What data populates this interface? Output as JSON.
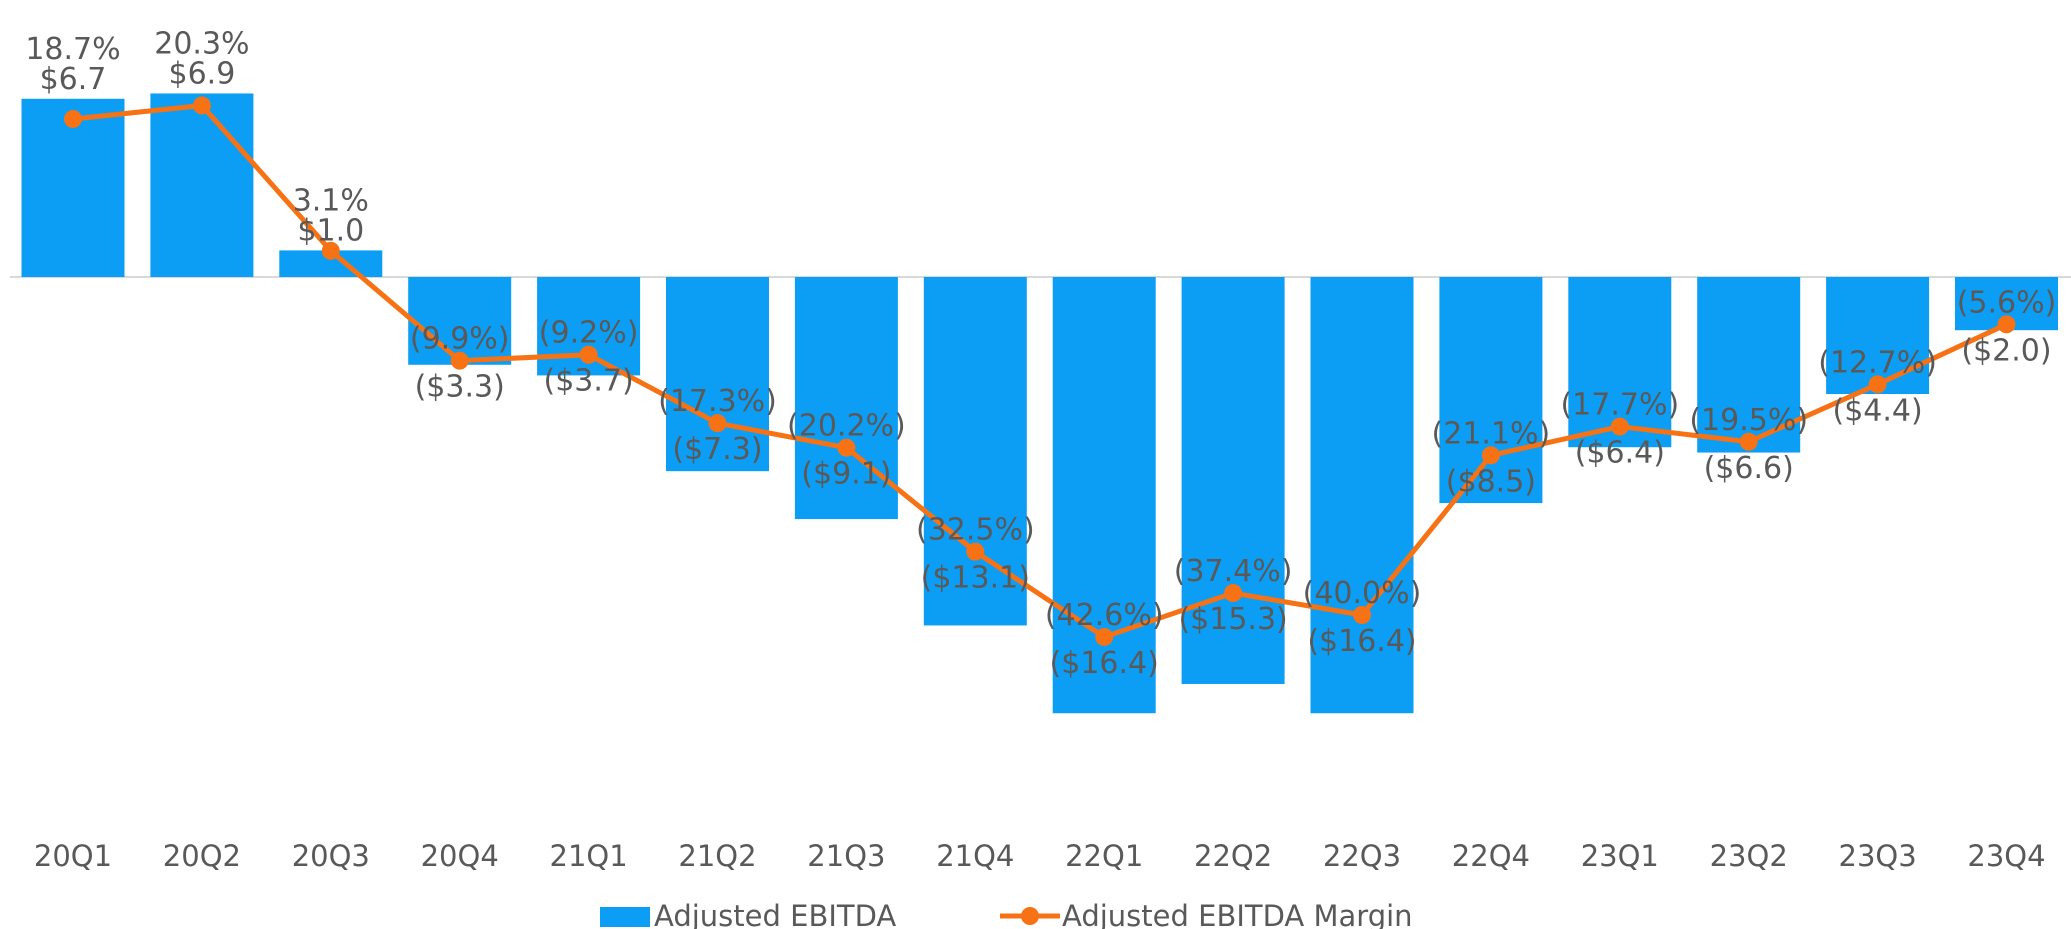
{
  "chart_data": {
    "type": "bar",
    "categories": [
      "20Q1",
      "20Q2",
      "20Q3",
      "20Q4",
      "21Q1",
      "21Q2",
      "21Q3",
      "21Q4",
      "22Q1",
      "22Q2",
      "22Q3",
      "22Q4",
      "23Q1",
      "23Q2",
      "23Q3",
      "23Q4"
    ],
    "series": [
      {
        "name": "Adjusted EBITDA",
        "type": "bar",
        "color": "#0c9ef4",
        "values": [
          6.7,
          6.9,
          1.0,
          -3.3,
          -3.7,
          -7.3,
          -9.1,
          -13.1,
          -16.4,
          -15.3,
          -16.4,
          -8.5,
          -6.4,
          -6.6,
          -4.4,
          -2.0
        ],
        "labels": [
          "$6.7",
          "$6.9",
          "$1.0",
          "($3.3)",
          "($3.7)",
          "($7.3)",
          "($9.1)",
          "($13.1)",
          "($16.4)",
          "($15.3)",
          "($16.4)",
          "($8.5)",
          "($6.4)",
          "($6.6)",
          "($4.4)",
          "($2.0)"
        ]
      },
      {
        "name": "Adjusted EBITDA Margin",
        "type": "line",
        "color": "#f77214",
        "values": [
          18.7,
          20.3,
          3.1,
          -9.9,
          -9.2,
          -17.3,
          -20.2,
          -32.5,
          -42.6,
          -37.4,
          -40.0,
          -21.1,
          -17.7,
          -19.5,
          -12.7,
          -5.6
        ],
        "labels": [
          "18.7%",
          "20.3%",
          "3.1%",
          "(9.9%)",
          "(9.2%)",
          "(17.3%)",
          "(20.2%)",
          "(32.5%)",
          "(42.6%)",
          "(37.4%)",
          "(40.0%)",
          "(21.1%)",
          "(17.7%)",
          "(19.5%)",
          "(12.7%)",
          "(5.6%)"
        ]
      }
    ],
    "grid": false,
    "legend": "bottom-center",
    "title": "",
    "xlabel": "",
    "ylabel": ""
  }
}
